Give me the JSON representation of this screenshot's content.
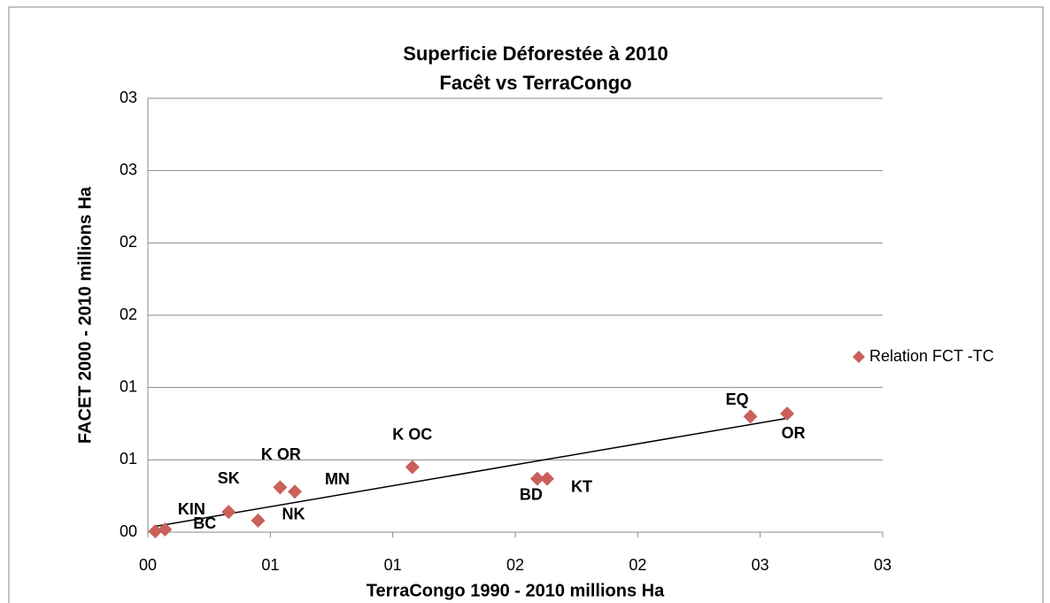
{
  "chart_data": {
    "type": "scatter",
    "title": "Superficie Déforestée à 2010",
    "subtitle": "Facêt vs TerraCongo",
    "x_label": "TerraCongo 1990 - 2010 millions Ha",
    "y_label": "FACET 2000 - 2010 millions Ha",
    "series": [
      {
        "name": "Relation FCT -TC",
        "color": "#c9605a",
        "x": [
          0.03,
          0.07,
          0.33,
          0.45,
          0.54,
          0.6,
          1.08,
          1.59,
          1.63,
          2.46,
          2.61
        ],
        "values": [
          0.006,
          0.018,
          0.14,
          0.08,
          0.31,
          0.28,
          0.45,
          0.37,
          0.37,
          0.8,
          0.82
        ],
        "point_labels": [
          "BC",
          "KIN",
          "SK",
          "NK",
          "K OR",
          "MN",
          "K OC",
          "BD",
          "KT",
          "EQ",
          "OR"
        ]
      }
    ],
    "trendline": true,
    "xlim": [
      0,
      3
    ],
    "xticks": [
      {
        "value": 0,
        "label": "00"
      },
      {
        "value": 0.5,
        "label": "01"
      },
      {
        "value": 1,
        "label": "01"
      },
      {
        "value": 1.5,
        "label": "02"
      },
      {
        "value": 2,
        "label": "02"
      },
      {
        "value": 2.5,
        "label": "03"
      },
      {
        "value": 3,
        "label": "03"
      }
    ],
    "ylim": [
      0,
      3
    ],
    "yticks": [
      {
        "value": 0,
        "label": "00"
      },
      {
        "value": 0.5,
        "label": "01"
      },
      {
        "value": 1,
        "label": "01"
      },
      {
        "value": 1.5,
        "label": "02"
      },
      {
        "value": 2,
        "label": "02"
      },
      {
        "value": 2.5,
        "label": "03"
      },
      {
        "value": 3,
        "label": "03"
      }
    ],
    "grid": true,
    "legend": "right"
  }
}
